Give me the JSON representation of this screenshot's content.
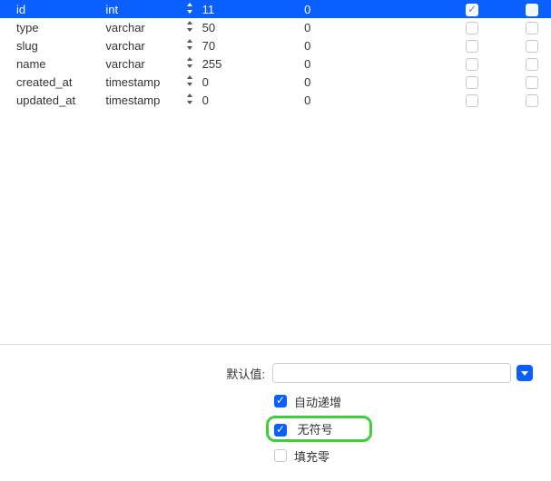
{
  "colors": {
    "selection": "#0a60ff",
    "highlight_border": "#3fcf3a",
    "border": "#e1e1e1",
    "text": "#333333"
  },
  "table": {
    "rows": [
      {
        "name": "id",
        "type": "int",
        "length": "11",
        "decimal": "0",
        "chk1": true,
        "chk2": false,
        "selected": true
      },
      {
        "name": "type",
        "type": "varchar",
        "length": "50",
        "decimal": "0",
        "chk1": false,
        "chk2": false,
        "selected": false
      },
      {
        "name": "slug",
        "type": "varchar",
        "length": "70",
        "decimal": "0",
        "chk1": false,
        "chk2": false,
        "selected": false
      },
      {
        "name": "name",
        "type": "varchar",
        "length": "255",
        "decimal": "0",
        "chk1": false,
        "chk2": false,
        "selected": false
      },
      {
        "name": "created_at",
        "type": "timestamp",
        "length": "0",
        "decimal": "0",
        "chk1": false,
        "chk2": false,
        "selected": false
      },
      {
        "name": "updated_at",
        "type": "timestamp",
        "length": "0",
        "decimal": "0",
        "chk1": false,
        "chk2": false,
        "selected": false
      }
    ]
  },
  "form": {
    "default_label": "默认值:",
    "default_value": "",
    "auto_increment": {
      "label": "自动递增",
      "checked": true
    },
    "unsigned": {
      "label": "无符号",
      "checked": true,
      "highlighted": true
    },
    "zerofill": {
      "label": "填充零",
      "checked": false
    }
  }
}
